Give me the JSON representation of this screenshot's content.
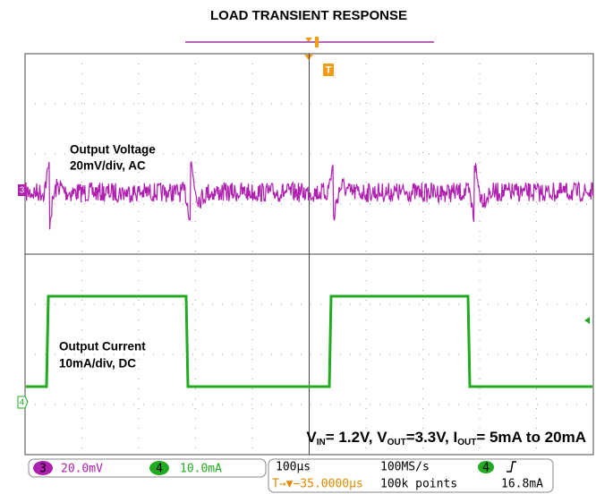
{
  "title": "LOAD TRANSIENT RESPONSE",
  "trigger_marker": "T",
  "channel_labels": [
    "3",
    "4"
  ],
  "annotations": {
    "voltage": [
      "Output Voltage",
      "20mV/div, AC"
    ],
    "current": [
      "Output Current",
      "10mA/div, DC"
    ]
  },
  "conditions": [
    "V",
    "IN",
    "= 1.2V,  V",
    "OUT",
    "=3.3V, I",
    "OUT",
    "= 5mA to 20mA"
  ],
  "status": {
    "ch3": {
      "num": "3",
      "scale": "20.0mV"
    },
    "ch4": {
      "num": "4",
      "scale": "10.0mA"
    },
    "timebase": "100µs",
    "sample_rate": "100MS/s",
    "trigger_ch": "4",
    "trigger_pos": "T→▼−35.0000µs",
    "points": "100k points",
    "trigger_level": "16.8mA"
  }
}
